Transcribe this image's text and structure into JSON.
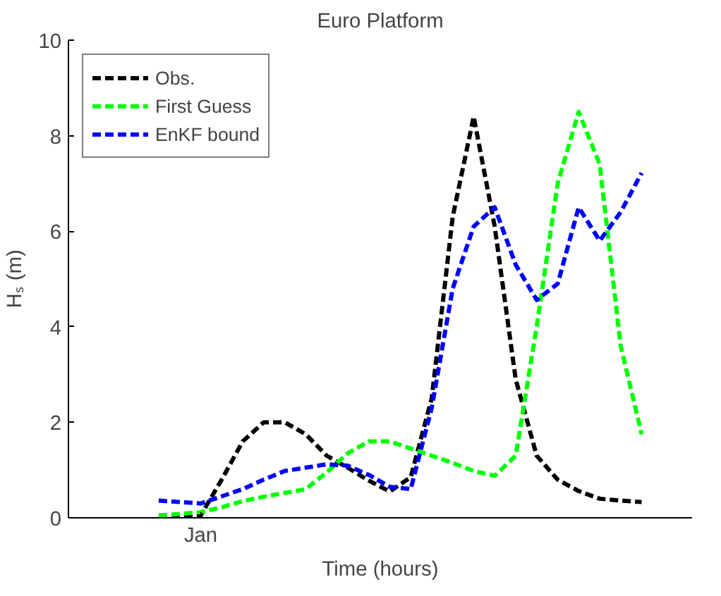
{
  "chart_data": {
    "type": "line",
    "title": "Euro Platform",
    "xlabel": "Time (hours)",
    "ylabel": "Hₛ (m)",
    "categories": [
      null,
      null,
      "Jan",
      null,
      null,
      null,
      null,
      null,
      null,
      null,
      null,
      null,
      null,
      null,
      null,
      null,
      null,
      null,
      null,
      null,
      null,
      null,
      null,
      null
    ],
    "ylim": [
      0,
      10
    ],
    "yticks": [
      0,
      2,
      4,
      6,
      8,
      10
    ],
    "legend": "top left",
    "line_style": "dashed",
    "series": [
      {
        "name": "Obs.",
        "color": "#000000",
        "values": [
          0,
          0.02,
          0.05,
          0.8,
          1.6,
          2.0,
          2.0,
          1.75,
          1.3,
          1.05,
          0.78,
          0.55,
          0.85,
          2.5,
          6.3,
          8.4,
          6.1,
          2.9,
          1.3,
          0.8,
          0.56,
          0.4,
          0.36,
          0.33
        ]
      },
      {
        "name": "First Guess",
        "color": "#00ff00",
        "values": [
          0.05,
          0.08,
          0.12,
          0.22,
          0.35,
          0.44,
          0.52,
          0.6,
          0.95,
          1.35,
          1.6,
          1.6,
          1.45,
          1.3,
          1.15,
          0.98,
          0.88,
          1.3,
          4.0,
          7.0,
          8.5,
          7.4,
          3.6,
          1.75
        ]
      },
      {
        "name": "EnKF bound",
        "color": "#0000ff",
        "values": [
          0.36,
          0.33,
          0.3,
          0.45,
          0.6,
          0.8,
          0.98,
          1.05,
          1.12,
          1.09,
          0.9,
          0.65,
          0.6,
          2.3,
          4.8,
          6.1,
          6.5,
          5.3,
          4.56,
          4.9,
          6.5,
          5.8,
          6.4,
          7.22
        ]
      }
    ]
  }
}
